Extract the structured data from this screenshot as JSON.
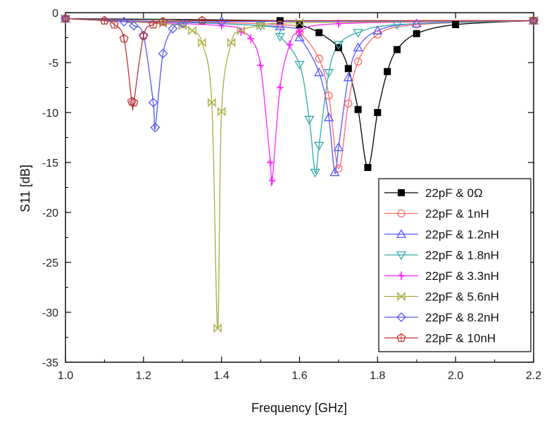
{
  "chart_data": {
    "type": "line",
    "title": "",
    "xlabel": "Frequency [GHz]",
    "ylabel": "S11 [dB]",
    "xlim": [
      1.0,
      2.2
    ],
    "ylim": [
      -35,
      0
    ],
    "xticks": [
      1.0,
      1.2,
      1.4,
      1.6,
      1.8,
      2.0,
      2.2
    ],
    "xtick_labels": [
      "1.0",
      "1.2",
      "1.4",
      "1.6",
      "1.8",
      "2.0",
      "2.2"
    ],
    "yticks": [
      0,
      -5,
      -10,
      -15,
      -20,
      -25,
      -30,
      -35
    ],
    "ytick_labels": [
      "0",
      "-5",
      "-10",
      "-15",
      "-20",
      "-25",
      "-30",
      "-35"
    ],
    "grid": false,
    "legend_position": "bottom-right",
    "series": [
      {
        "name": "22pF & 0Ω",
        "color": "#000000",
        "marker": "square-filled",
        "x": [
          1.0,
          1.55,
          1.6,
          1.65,
          1.7,
          1.725,
          1.75,
          1.775,
          1.8,
          1.825,
          1.85,
          1.9,
          2.0,
          2.2
        ],
        "y": [
          -0.6,
          -0.8,
          -1.2,
          -2.0,
          -3.5,
          -5.6,
          -9.7,
          -15.5,
          -10.0,
          -5.9,
          -3.7,
          -2.1,
          -1.2,
          -0.8
        ]
      },
      {
        "name": "22pF & 1nH",
        "color": "#ff6666",
        "marker": "circle",
        "x": [
          1.0,
          1.55,
          1.6,
          1.65,
          1.675,
          1.7,
          1.725,
          1.75,
          1.8,
          1.9,
          2.2
        ],
        "y": [
          -0.6,
          -1.2,
          -2.0,
          -4.6,
          -8.3,
          -15.6,
          -9.1,
          -4.9,
          -2.2,
          -1.2,
          -0.8
        ]
      },
      {
        "name": "22pF & 1.2nH",
        "color": "#5555ff",
        "marker": "triangle-up",
        "x": [
          1.0,
          1.55,
          1.6,
          1.65,
          1.675,
          1.69,
          1.7,
          1.725,
          1.75,
          1.8,
          1.9,
          2.2
        ],
        "y": [
          -0.6,
          -1.4,
          -2.5,
          -6.0,
          -10.5,
          -16.0,
          -13.5,
          -6.5,
          -3.5,
          -1.8,
          -1.1,
          -0.8
        ]
      },
      {
        "name": "22pF & 1.8nH",
        "color": "#33aaaa",
        "marker": "triangle-down",
        "x": [
          1.0,
          1.5,
          1.55,
          1.6,
          1.625,
          1.64,
          1.65,
          1.675,
          1.7,
          1.75,
          1.85,
          2.2
        ],
        "y": [
          -0.6,
          -1.3,
          -2.4,
          -5.2,
          -10.7,
          -16.0,
          -13.3,
          -6.0,
          -3.2,
          -2.0,
          -1.2,
          -0.8
        ]
      },
      {
        "name": "22pF & 3.3nH",
        "color": "#ff22ff",
        "marker": "plus",
        "x": [
          1.0,
          1.4,
          1.45,
          1.475,
          1.5,
          1.525,
          1.53,
          1.55,
          1.575,
          1.6,
          1.7,
          2.2
        ],
        "y": [
          -0.6,
          -1.3,
          -1.9,
          -2.6,
          -5.3,
          -15.0,
          -16.8,
          -7.5,
          -3.2,
          -1.9,
          -1.1,
          -0.8
        ]
      },
      {
        "name": "22pF & 5.6nH",
        "color": "#aaaa44",
        "marker": "x-cross",
        "x": [
          1.0,
          1.25,
          1.3,
          1.325,
          1.35,
          1.375,
          1.39,
          1.4,
          1.425,
          1.45,
          1.5,
          1.6,
          2.2
        ],
        "y": [
          -0.6,
          -1.1,
          -1.3,
          -1.8,
          -3.0,
          -9.0,
          -31.6,
          -9.9,
          -3.0,
          -1.8,
          -1.3,
          -1.0,
          -0.8
        ]
      },
      {
        "name": "22pF & 8.2nH",
        "color": "#5555ee",
        "marker": "diamond",
        "x": [
          1.0,
          1.15,
          1.175,
          1.2,
          1.225,
          1.23,
          1.25,
          1.275,
          1.3,
          1.4,
          2.2
        ],
        "y": [
          -0.6,
          -0.9,
          -1.3,
          -2.3,
          -9.0,
          -11.5,
          -4.1,
          -1.6,
          -1.1,
          -0.9,
          -0.8
        ]
      },
      {
        "name": "22pF & 10nH",
        "color": "#bb3333",
        "marker": "pentagon",
        "x": [
          1.0,
          1.1,
          1.125,
          1.15,
          1.17,
          1.175,
          1.2,
          1.225,
          1.25,
          1.35,
          2.2
        ],
        "y": [
          -0.6,
          -0.8,
          -1.2,
          -2.6,
          -8.9,
          -9.0,
          -2.3,
          -1.2,
          -0.9,
          -0.8,
          -0.8
        ]
      }
    ]
  }
}
